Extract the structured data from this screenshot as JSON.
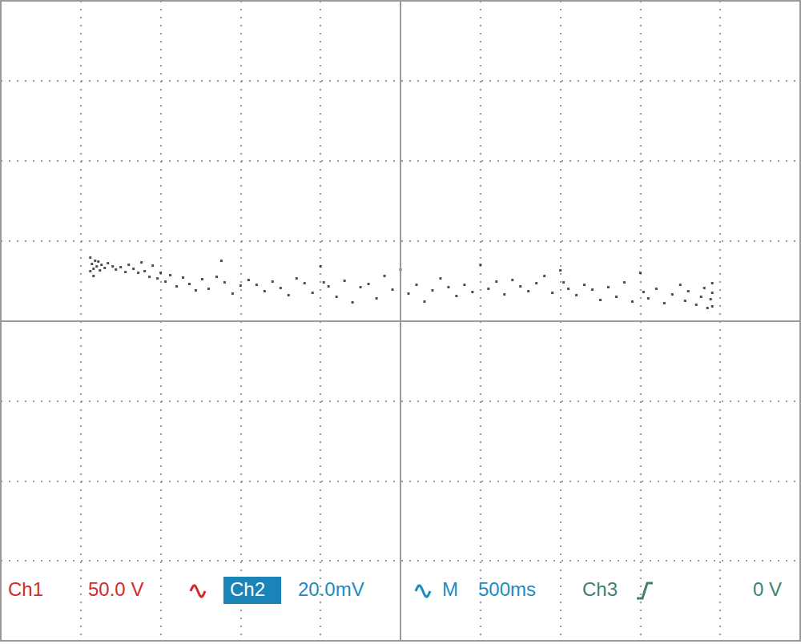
{
  "chart_data": {
    "type": "scatter",
    "xlim": [
      0,
      5
    ],
    "xticks": [
      0,
      0.5,
      1,
      1.5,
      2,
      2.5,
      3,
      3.5,
      4,
      4.5,
      5
    ],
    "ylim": [
      -80,
      80
    ],
    "yticks": [
      -80,
      -60,
      -40,
      -20,
      0,
      20,
      40,
      60,
      80
    ],
    "grid": true,
    "tick_labels": false,
    "color": "#111111",
    "marker": "square",
    "x": [
      0.56,
      0.57,
      0.58,
      0.56,
      0.59,
      0.6,
      0.61,
      0.62,
      0.58,
      0.63,
      0.65,
      0.67,
      0.7,
      0.72,
      0.75,
      0.78,
      0.8,
      0.83,
      0.86,
      0.88,
      0.9,
      0.93,
      0.95,
      0.98,
      1.0,
      1.03,
      1.06,
      1.1,
      1.14,
      1.18,
      1.22,
      1.26,
      1.3,
      1.35,
      1.38,
      1.4,
      1.45,
      1.5,
      1.55,
      1.6,
      1.65,
      1.7,
      1.75,
      1.8,
      1.85,
      1.9,
      1.95,
      2.0,
      2.02,
      2.05,
      2.1,
      2.15,
      2.2,
      2.25,
      2.3,
      2.35,
      2.4,
      2.45,
      2.5,
      2.55,
      2.6,
      2.65,
      2.7,
      2.75,
      2.8,
      2.85,
      2.9,
      2.95,
      3.0,
      3.05,
      3.1,
      3.15,
      3.2,
      3.25,
      3.3,
      3.35,
      3.4,
      3.45,
      3.5,
      3.52,
      3.55,
      3.6,
      3.65,
      3.7,
      3.75,
      3.8,
      3.85,
      3.9,
      3.95,
      4.0,
      4.02,
      4.05,
      4.1,
      4.15,
      4.2,
      4.25,
      4.28,
      4.3,
      4.35,
      4.38,
      4.4,
      4.42,
      4.44,
      4.45,
      4.45,
      4.45
    ],
    "values": [
      15.8,
      14.2,
      13.0,
      12.4,
      15.0,
      13.6,
      14.8,
      12.6,
      11.2,
      14.0,
      13.2,
      14.4,
      13.6,
      12.8,
      13.4,
      12.2,
      14.0,
      13.0,
      12.0,
      14.6,
      12.4,
      11.0,
      13.8,
      10.6,
      12.0,
      9.8,
      11.4,
      8.6,
      10.8,
      9.2,
      7.6,
      10.4,
      8.0,
      11.0,
      15.0,
      9.6,
      6.8,
      8.8,
      10.2,
      9.0,
      7.4,
      9.8,
      8.2,
      6.4,
      10.6,
      9.4,
      7.0,
      13.6,
      9.6,
      8.6,
      6.0,
      10.0,
      4.6,
      8.4,
      9.2,
      5.6,
      11.2,
      7.8,
      12.8,
      6.8,
      9.0,
      4.8,
      7.6,
      10.6,
      8.4,
      6.2,
      9.0,
      7.2,
      14.0,
      8.0,
      9.8,
      6.6,
      10.2,
      8.6,
      7.4,
      9.4,
      11.2,
      7.0,
      12.6,
      9.6,
      8.0,
      6.4,
      9.0,
      7.8,
      5.2,
      8.4,
      6.0,
      9.6,
      4.8,
      12.0,
      7.2,
      5.6,
      8.0,
      4.4,
      6.6,
      9.0,
      5.0,
      7.4,
      4.0,
      6.0,
      8.2,
      3.2,
      5.4,
      7.0,
      9.4,
      3.6
    ],
    "annotations": [
      {
        "text": "Ch1",
        "color": "#d22b2b"
      },
      {
        "text": "50.0 V",
        "color": "#d22b2b"
      },
      {
        "text": "Ch2",
        "color": "#ffffff"
      },
      {
        "text": "20.0mV",
        "color": "#1a8cbf"
      },
      {
        "text": "M",
        "color": "#1a8cbf"
      },
      {
        "text": "500ms",
        "color": "#1a8cbf"
      },
      {
        "text": "Ch3",
        "color": "#3f7f74"
      },
      {
        "text": "0 V",
        "color": "#3f7f74"
      }
    ]
  }
}
